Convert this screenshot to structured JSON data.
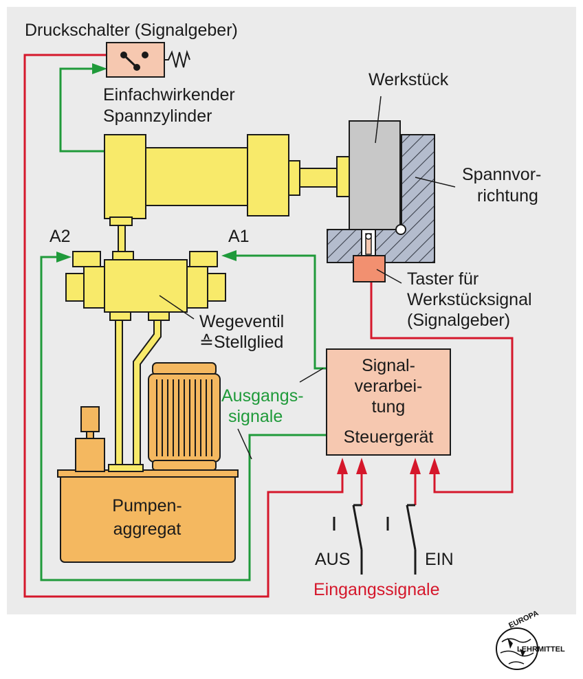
{
  "labels": {
    "pressure_switch": "Druckschalter (Signalgeber)",
    "cylinder_line1": "Einfachwirkender",
    "cylinder_line2": "Spannzylinder",
    "workpiece": "Werkstück",
    "fixture_line1": "Spannvor-",
    "fixture_line2": "richtung",
    "port_a2": "A2",
    "port_a1": "A1",
    "sensor_line1": "Taster für",
    "sensor_line2": "Werkstücksignal",
    "sensor_line3": "(Signalgeber)",
    "valve_line1": "Wegeventil",
    "valve_line2": "≙Stellglied",
    "controller_line1": "Signal-",
    "controller_line2": "verarbei-",
    "controller_line3": "tung",
    "controller_line4": "Steuergerät",
    "output_signals_line1": "Ausgangs-",
    "output_signals_line2": "signale",
    "pump_line1": "Pumpen-",
    "pump_line2": "aggregat",
    "switch_off": "AUS",
    "switch_on": "EIN",
    "input_signals": "Eingangssignale"
  },
  "logo": {
    "top": "EUROPA",
    "bottom": "LEHRMITTEL"
  },
  "colors": {
    "background": "#ebebeb",
    "yellow": "#f8ea6a",
    "orange": "#f4b860",
    "salmon": "#f6c8b0",
    "red_line": "#d5172b",
    "green_line": "#1f9a3a",
    "workpiece_gray": "#c8c8c8",
    "fixture_blue": "#b4bccd"
  }
}
